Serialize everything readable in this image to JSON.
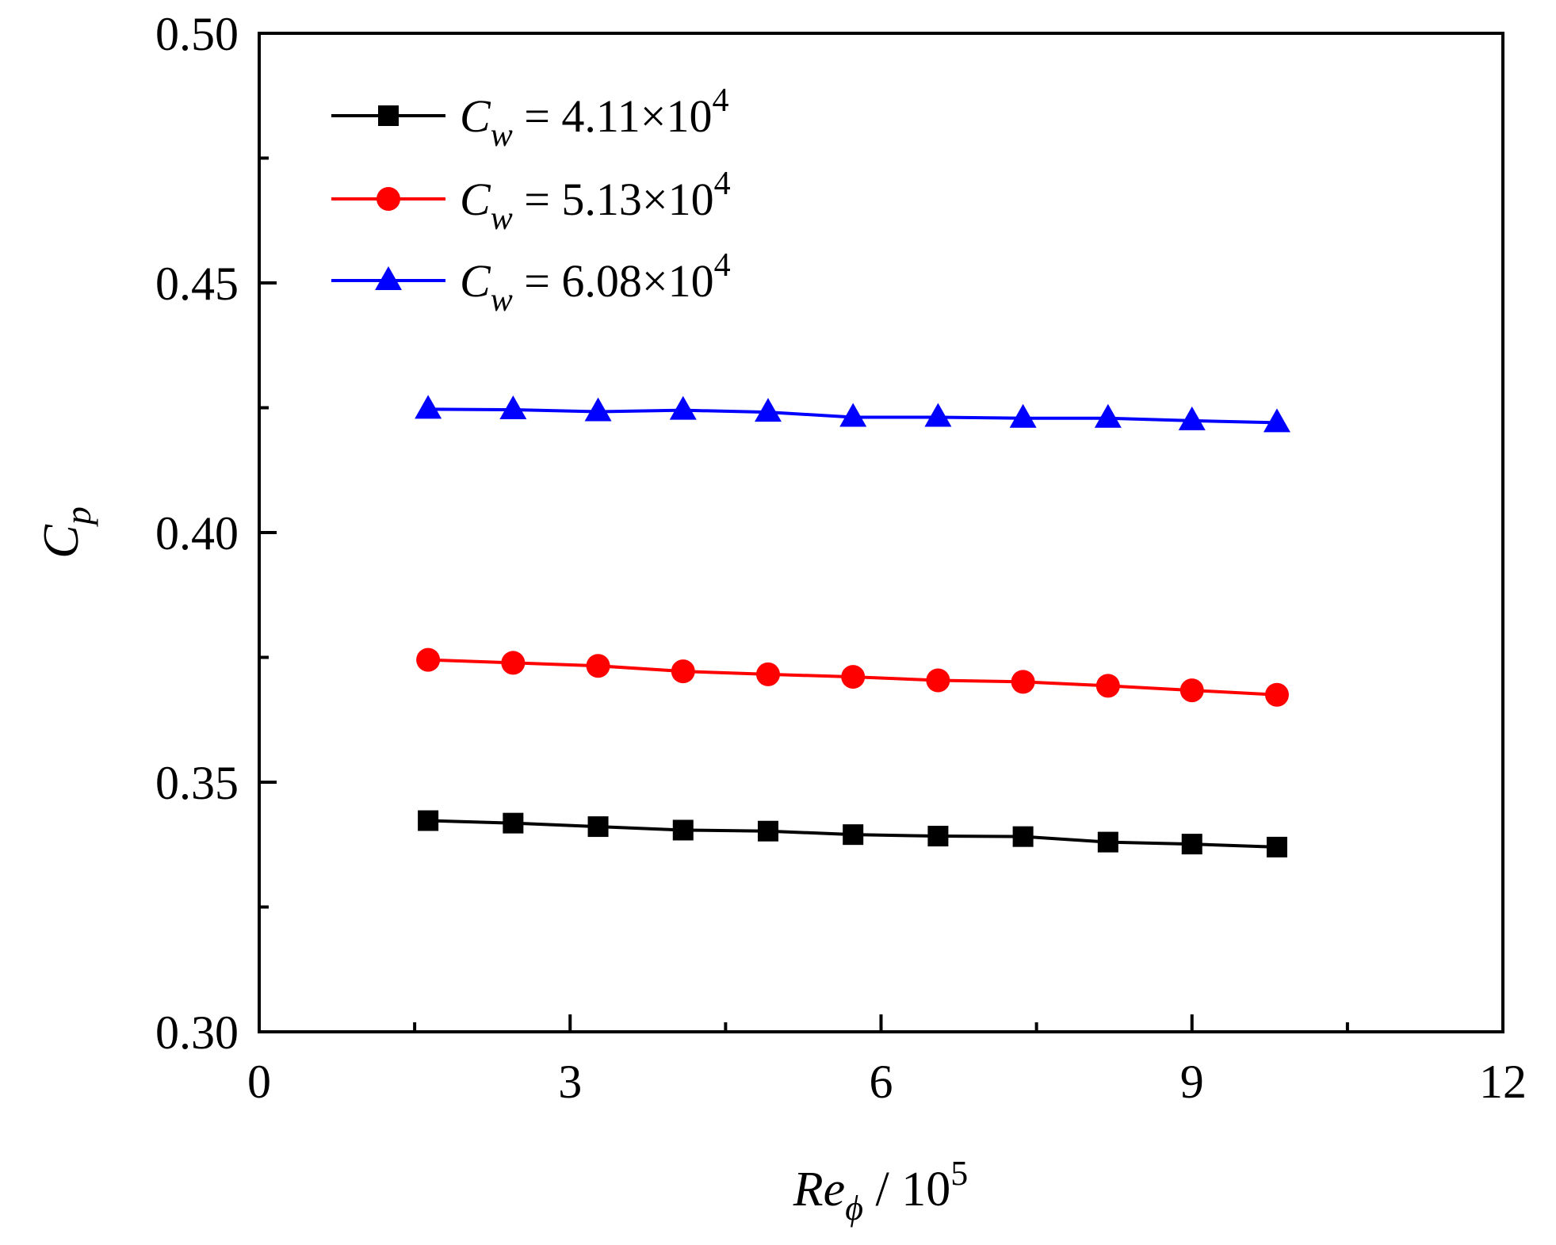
{
  "chart_data": {
    "type": "line",
    "xlabel": {
      "main": "Re",
      "sub": "ϕ",
      "suffix": " / 10",
      "sup": "5"
    },
    "ylabel": {
      "main": "C",
      "sub": "p"
    },
    "xlim": [
      0,
      12
    ],
    "ylim": [
      0.3,
      0.5
    ],
    "xticks": [
      0,
      3,
      6,
      9,
      12
    ],
    "xtick_labels": [
      "0",
      "3",
      "6",
      "9",
      "12"
    ],
    "x_minor_ticks": [
      1.5,
      4.5,
      7.5,
      10.5
    ],
    "yticks": [
      0.3,
      0.35,
      0.4,
      0.45,
      0.5
    ],
    "ytick_labels": [
      "0.30",
      "0.35",
      "0.40",
      "0.45",
      "0.50"
    ],
    "y_minor_ticks": [
      0.325,
      0.375,
      0.425,
      0.475
    ],
    "grid": false,
    "legend_position": "top-left",
    "x": [
      1.63,
      2.45,
      3.27,
      4.09,
      4.91,
      5.73,
      6.55,
      7.37,
      8.19,
      9.0,
      9.82
    ],
    "series": [
      {
        "name": "C_w = 4.11×10^4",
        "label": {
          "main": "C",
          "sub": "w",
          "eq": " = 4.11×10",
          "sup": "4"
        },
        "color": "#000000",
        "marker": "square",
        "values": [
          0.3423,
          0.3418,
          0.3411,
          0.3404,
          0.3402,
          0.3395,
          0.3392,
          0.3391,
          0.338,
          0.3376,
          0.337
        ]
      },
      {
        "name": "C_w = 5.13×10^4",
        "label": {
          "main": "C",
          "sub": "w",
          "eq": " = 5.13×10",
          "sup": "4"
        },
        "color": "#ff0000",
        "marker": "circle",
        "values": [
          0.3745,
          0.3739,
          0.3733,
          0.3722,
          0.3716,
          0.3711,
          0.3704,
          0.3701,
          0.3693,
          0.3684,
          0.3675
        ]
      },
      {
        "name": "C_w = 6.08×10^4",
        "label": {
          "main": "C",
          "sub": "w",
          "eq": " = 6.08×10",
          "sup": "4"
        },
        "color": "#0000ff",
        "marker": "triangle",
        "values": [
          0.4247,
          0.4246,
          0.4242,
          0.4245,
          0.4241,
          0.4231,
          0.4231,
          0.4229,
          0.4229,
          0.4224,
          0.422
        ]
      }
    ]
  }
}
